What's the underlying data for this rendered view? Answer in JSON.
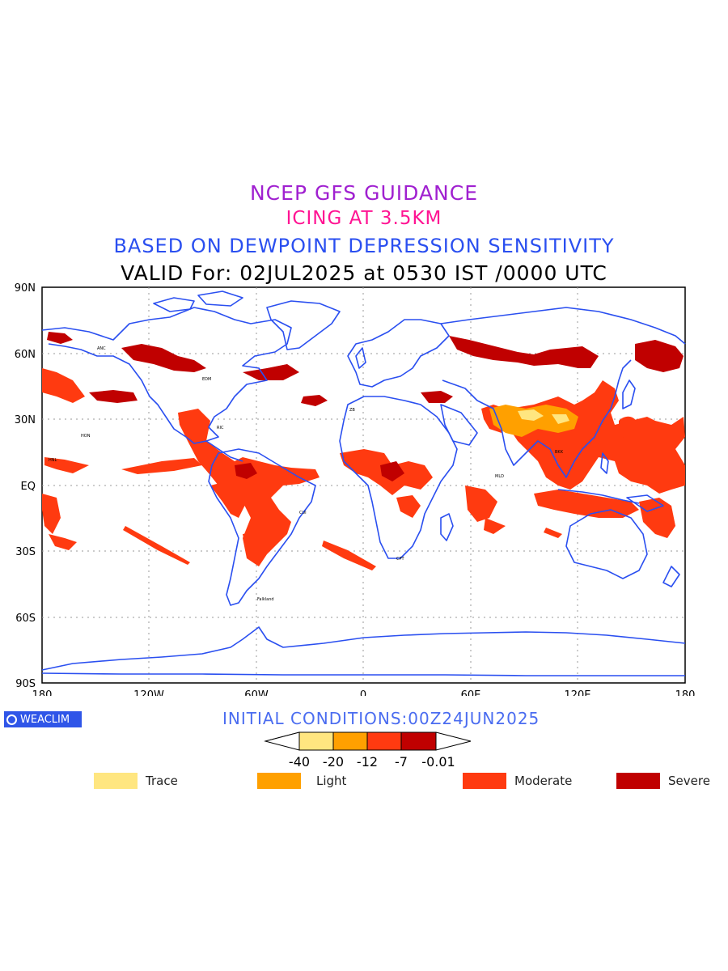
{
  "header": {
    "line1": "NCEP GFS GUIDANCE",
    "line2": "ICING AT 3.5KM",
    "line3": "BASED ON DEWPOINT DEPRESSION SENSITIVITY",
    "line4": "VALID For: 02JUL2025 at 0530 IST /0000 UTC"
  },
  "map": {
    "lat_ticks": [
      "90N",
      "60N",
      "30N",
      "EQ",
      "30S",
      "60S",
      "90S"
    ],
    "lon_ticks": [
      "180",
      "120W",
      "60W",
      "0",
      "60E",
      "120E",
      "180"
    ],
    "coastline_color": "#2a4ff0",
    "city_labels": [
      "ANC",
      "HON",
      "Falkland",
      "CPT",
      "ZB",
      "EDM",
      "MLD",
      "BKK",
      "HNL",
      "RIC",
      "CUI"
    ]
  },
  "footer": {
    "logo_text": "WEACLIM",
    "initial_conditions": "INITIAL CONDITIONS:00Z24JUN2025"
  },
  "colorbar": {
    "boxes": [
      "#ffe680",
      "#ffa000",
      "#ff3a10",
      "#c00000"
    ],
    "tick_labels": [
      "-40",
      "-20",
      "-12",
      "-7",
      "-0.01"
    ]
  },
  "legend": [
    {
      "label": "Trace",
      "color": "#ffe680"
    },
    {
      "label": "Light",
      "color": "#ffa000"
    },
    {
      "label": "Moderate",
      "color": "#ff3a10"
    },
    {
      "label": "Severe",
      "color": "#c00000"
    }
  ]
}
